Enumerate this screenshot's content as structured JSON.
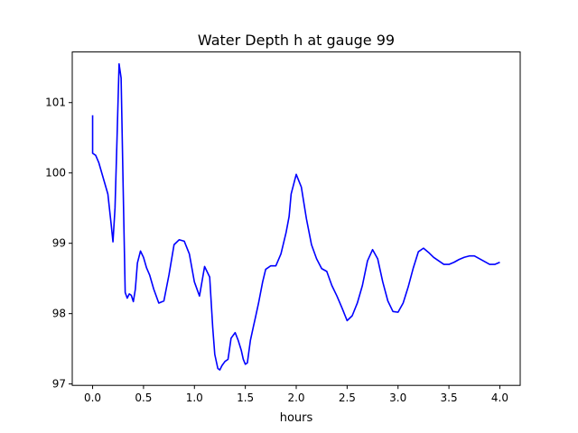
{
  "chart_data": {
    "type": "line",
    "title": "Water Depth h at gauge 99",
    "xlabel": "hours",
    "ylabel": "",
    "xlim": [
      -0.2,
      4.2
    ],
    "ylim": [
      96.98,
      101.72
    ],
    "xticks": [
      0.0,
      0.5,
      1.0,
      1.5,
      2.0,
      2.5,
      3.0,
      3.5,
      4.0
    ],
    "xtick_labels": [
      "0.0",
      "0.5",
      "1.0",
      "1.5",
      "2.0",
      "2.5",
      "3.0",
      "3.5",
      "4.0"
    ],
    "yticks": [
      97,
      98,
      99,
      100,
      101
    ],
    "ytick_labels": [
      "97",
      "98",
      "99",
      "100",
      "101"
    ],
    "grid": false,
    "series": [
      {
        "color": "#0000ff",
        "x": [
          0.0,
          0.0,
          0.0,
          0.03,
          0.06,
          0.1,
          0.15,
          0.18,
          0.2,
          0.22,
          0.24,
          0.26,
          0.28,
          0.3,
          0.32,
          0.34,
          0.36,
          0.38,
          0.4,
          0.42,
          0.44,
          0.47,
          0.5,
          0.53,
          0.56,
          0.6,
          0.65,
          0.7,
          0.75,
          0.8,
          0.85,
          0.9,
          0.95,
          1.0,
          1.05,
          1.1,
          1.15,
          1.18,
          1.2,
          1.23,
          1.25,
          1.27,
          1.3,
          1.33,
          1.36,
          1.4,
          1.43,
          1.46,
          1.48,
          1.5,
          1.52,
          1.55,
          1.58,
          1.6,
          1.63,
          1.67,
          1.7,
          1.75,
          1.8,
          1.85,
          1.9,
          1.93,
          1.95,
          2.0,
          2.05,
          2.1,
          2.15,
          2.2,
          2.25,
          2.3,
          2.35,
          2.4,
          2.45,
          2.5,
          2.55,
          2.6,
          2.65,
          2.7,
          2.75,
          2.8,
          2.85,
          2.9,
          2.95,
          3.0,
          3.05,
          3.1,
          3.15,
          3.2,
          3.25,
          3.3,
          3.35,
          3.4,
          3.45,
          3.5,
          3.55,
          3.6,
          3.65,
          3.7,
          3.75,
          3.8,
          3.85,
          3.9,
          3.95,
          4.0
        ],
        "y": [
          100.82,
          100.5,
          100.28,
          100.25,
          100.15,
          99.95,
          99.7,
          99.3,
          99.02,
          99.5,
          100.5,
          101.55,
          101.35,
          99.8,
          98.3,
          98.22,
          98.28,
          98.26,
          98.17,
          98.35,
          98.72,
          98.89,
          98.8,
          98.65,
          98.55,
          98.35,
          98.15,
          98.18,
          98.55,
          98.98,
          99.05,
          99.03,
          98.85,
          98.45,
          98.25,
          98.67,
          98.52,
          97.8,
          97.42,
          97.22,
          97.2,
          97.26,
          97.32,
          97.35,
          97.65,
          97.73,
          97.62,
          97.48,
          97.35,
          97.28,
          97.3,
          97.62,
          97.82,
          97.95,
          98.15,
          98.45,
          98.63,
          98.68,
          98.68,
          98.85,
          99.15,
          99.38,
          99.7,
          99.98,
          99.8,
          99.35,
          98.98,
          98.78,
          98.64,
          98.6,
          98.4,
          98.25,
          98.08,
          97.9,
          97.97,
          98.15,
          98.4,
          98.75,
          98.91,
          98.78,
          98.45,
          98.18,
          98.03,
          98.02,
          98.15,
          98.38,
          98.65,
          98.88,
          98.93,
          98.87,
          98.8,
          98.75,
          98.7,
          98.7,
          98.73,
          98.77,
          98.8,
          98.82,
          98.82,
          98.78,
          98.74,
          98.7,
          98.7,
          98.73
        ],
        "labels_note": ""
      }
    ]
  }
}
